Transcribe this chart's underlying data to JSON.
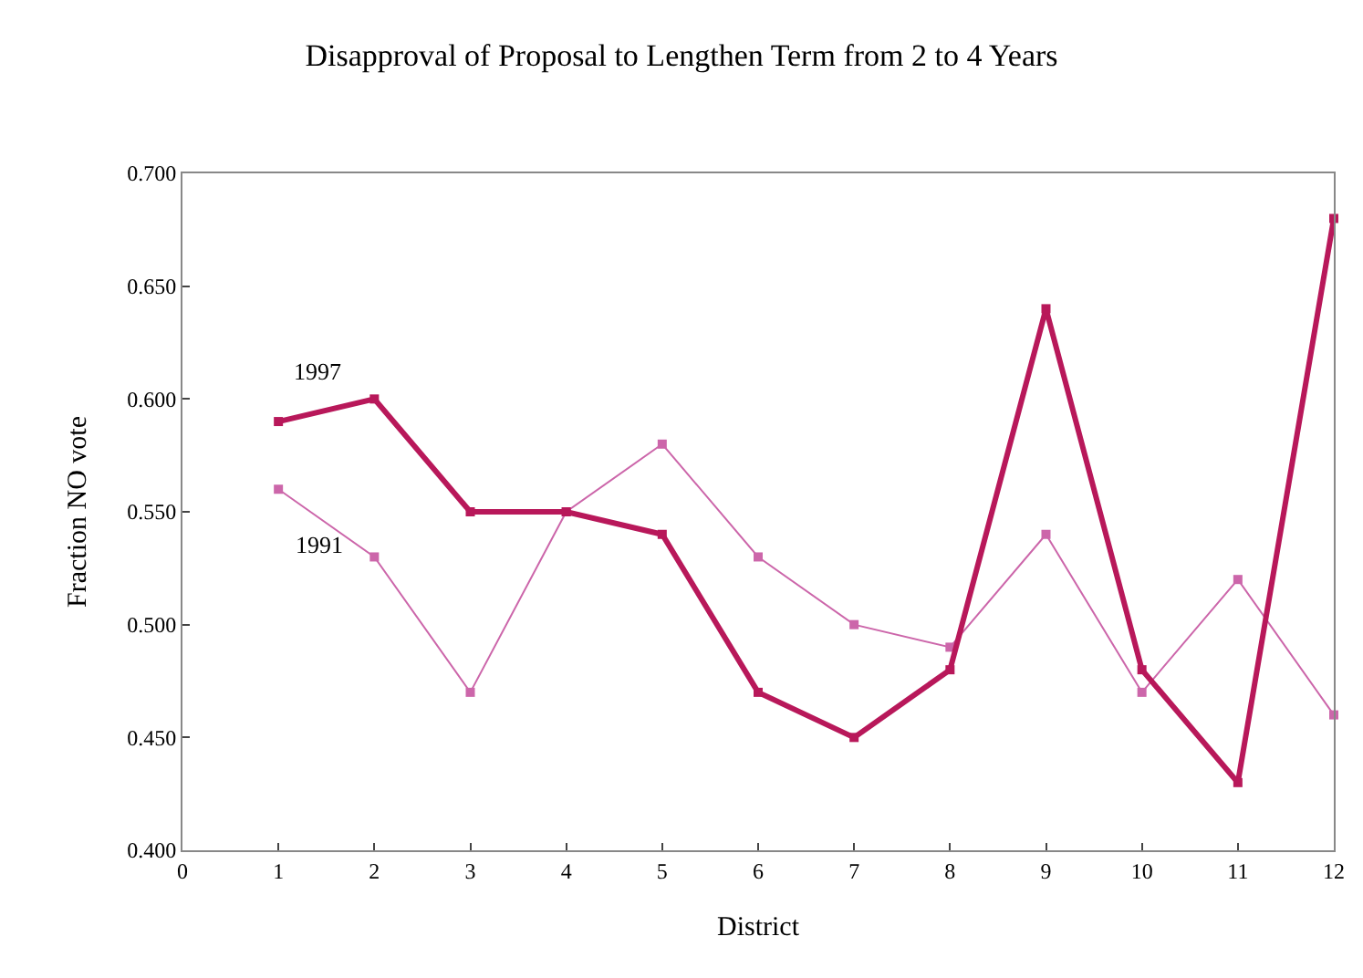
{
  "chart_data": {
    "type": "line",
    "title": "Disapproval of Proposal to Lengthen Term from 2 to 4 Years",
    "xlabel": "District",
    "ylabel": "Fraction NO vote",
    "x": [
      1,
      2,
      3,
      4,
      5,
      6,
      7,
      8,
      9,
      10,
      11,
      12
    ],
    "series": [
      {
        "name": "1997",
        "color": "#b8185a",
        "values": [
          0.59,
          0.6,
          0.55,
          0.55,
          0.54,
          0.47,
          0.45,
          0.48,
          0.64,
          0.48,
          0.43,
          0.68
        ]
      },
      {
        "name": "1991",
        "color": "#cc66aa",
        "values": [
          0.56,
          0.53,
          0.47,
          0.55,
          0.58,
          0.53,
          0.5,
          0.49,
          0.54,
          0.47,
          0.52,
          0.46
        ]
      }
    ],
    "xlim": [
      0,
      12
    ],
    "xticks": [
      0,
      1,
      2,
      3,
      4,
      5,
      6,
      7,
      8,
      9,
      10,
      11,
      12
    ],
    "ylim": [
      0.4,
      0.7
    ],
    "yticks": [
      {
        "value": 0.4,
        "label": "0.400"
      },
      {
        "value": 0.45,
        "label": "0.450"
      },
      {
        "value": 0.5,
        "label": "0.500"
      },
      {
        "value": 0.55,
        "label": "0.550"
      },
      {
        "value": 0.6,
        "label": "0.600"
      },
      {
        "value": 0.65,
        "label": "0.650"
      },
      {
        "value": 0.7,
        "label": "0.700"
      }
    ],
    "grid": false,
    "legend": false,
    "marker": "square",
    "line_style": "solid"
  }
}
